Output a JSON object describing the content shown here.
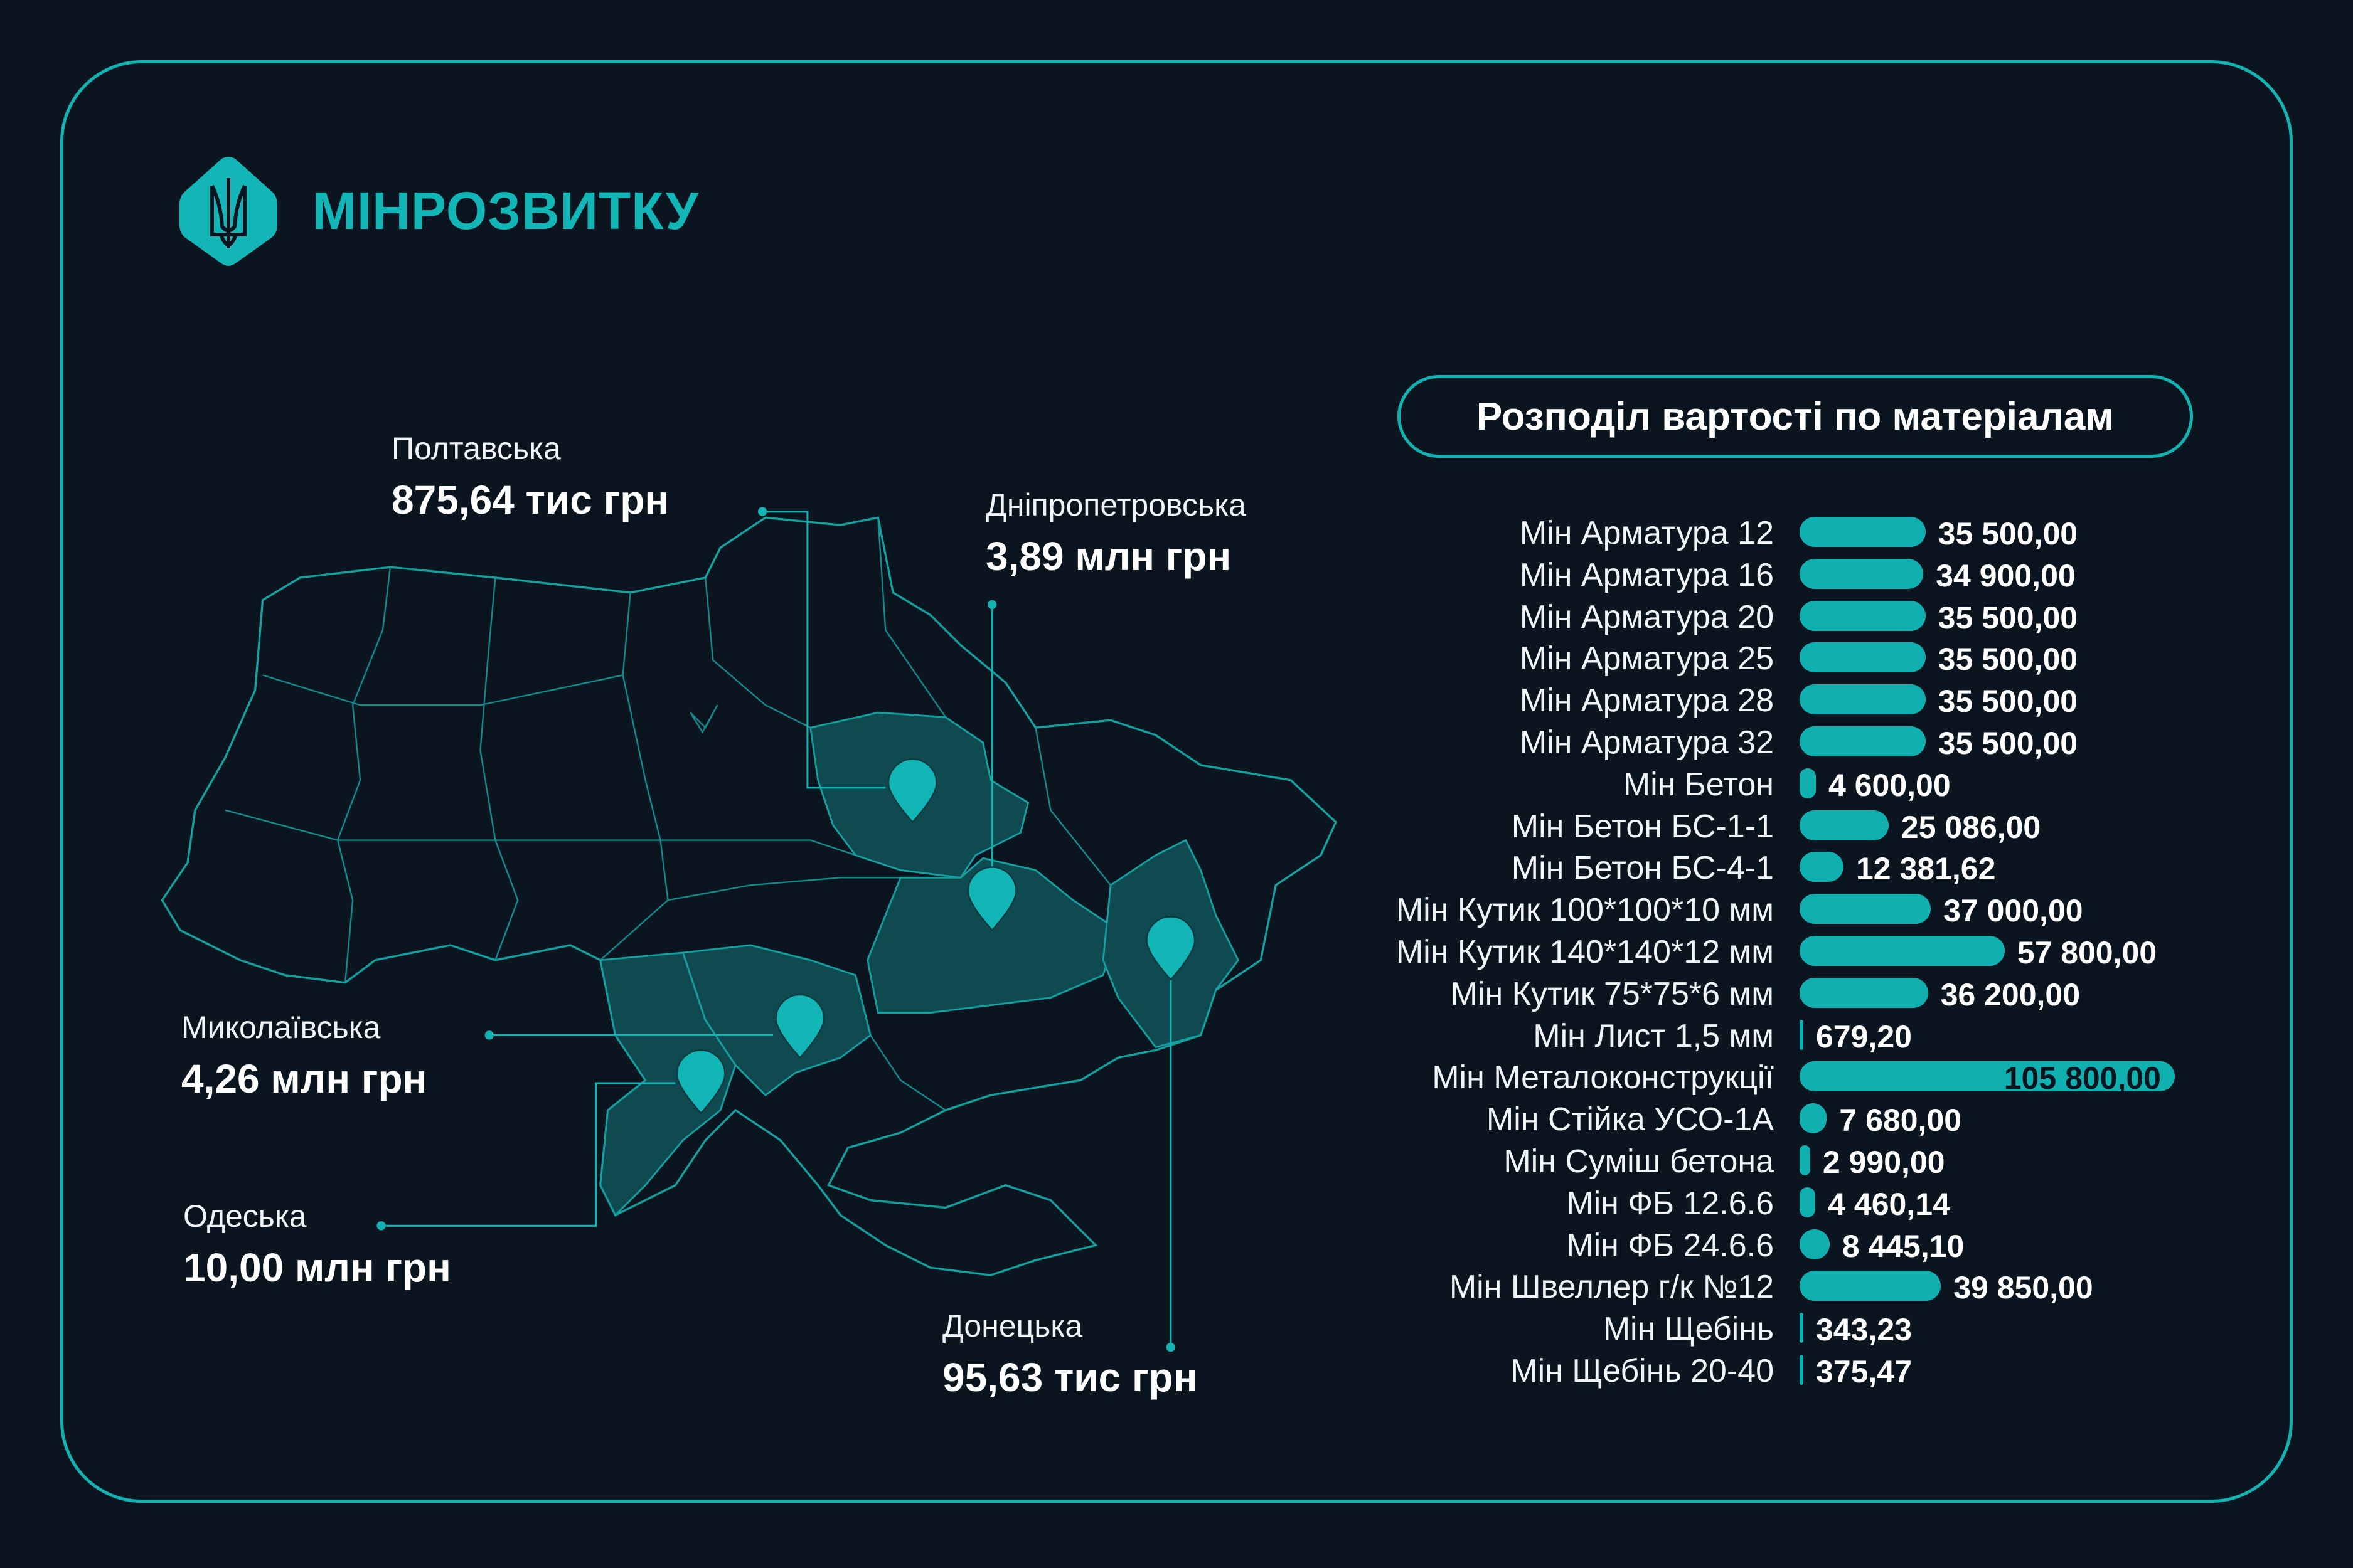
{
  "brand": {
    "name": "МІНРОЗВИТКУ",
    "logo_icon": "trident-hexagon-icon"
  },
  "colors": {
    "accent": "#12b6b6",
    "background": "#0a1520",
    "region_fill": "#0e4a4f"
  },
  "regions": [
    {
      "name": "Полтавська",
      "value": "875,64 тис грн"
    },
    {
      "name": "Дніпропетровська",
      "value": "3,89 млн грн"
    },
    {
      "name": "Миколаївська",
      "value": "4,26 млн грн"
    },
    {
      "name": "Одеська",
      "value": "10,00 млн грн"
    },
    {
      "name": "Донецька",
      "value": "95,63 тис грн"
    }
  ],
  "chart_data": {
    "type": "bar",
    "orientation": "horizontal",
    "title": "Розподіл вартості по матеріалам",
    "categories": [
      "Мін Арматура 12",
      "Мін Арматура 16",
      "Мін Арматура 20",
      "Мін Арматура 25",
      "Мін Арматура 28",
      "Мін Арматура 32",
      "Мін Бетон",
      "Мін Бетон БС-1-1",
      "Мін Бетон БС-4-1",
      "Мін Кутик 100*100*10 мм",
      "Мін Кутик 140*140*12 мм",
      "Мін Кутик 75*75*6 мм",
      "Мін Лист 1,5 мм",
      "Мін Металоконструкції",
      "Мін Стійка  УСО-1А",
      "Мін Суміш бетона",
      "Мін ФБ 12.6.6",
      "Мін ФБ 24.6.6",
      "Мін Швеллер г/к №12",
      "Мін Щебінь",
      "Мін Щебінь 20-40"
    ],
    "values": [
      35500,
      34900,
      35500,
      35500,
      35500,
      35500,
      4600,
      25086,
      12381.62,
      37000,
      57800,
      36200,
      679.2,
      105800,
      7680,
      2990,
      4460.14,
      8445.1,
      39850,
      343.23,
      375.47
    ],
    "value_labels": [
      "35 500,00",
      "34 900,00",
      "35 500,00",
      "35 500,00",
      "35 500,00",
      "35 500,00",
      "4 600,00",
      "25 086,00",
      "12 381,62",
      "37 000,00",
      "57 800,00",
      "36 200,00",
      "679,20",
      "105 800,00",
      "7 680,00",
      "2  990,00",
      "4 460,14",
      "8 445,10",
      "39 850,00",
      "343,23",
      "375,47"
    ],
    "color": "#10b0b0"
  }
}
